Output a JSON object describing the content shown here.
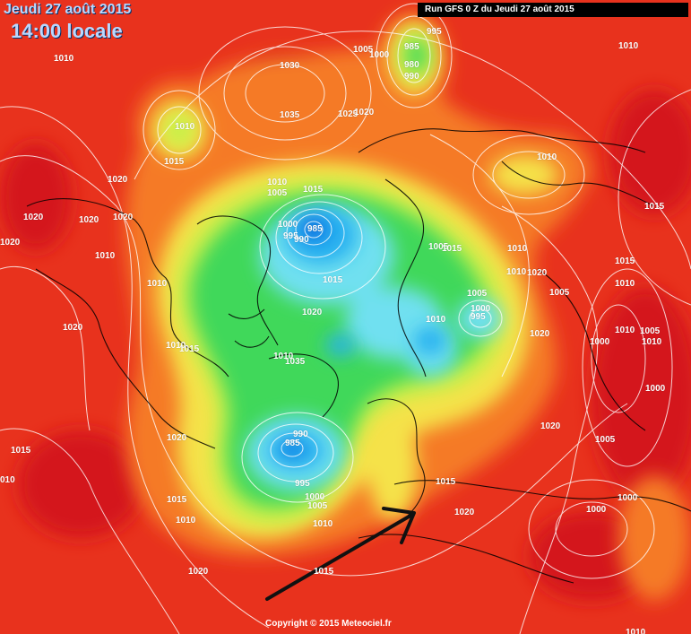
{
  "header": {
    "date": "Jeudi 27 août 2015",
    "time": "14:00 locale",
    "run": "Run GFS 0 Z du Jeudi 27 août 2015"
  },
  "footer": {
    "copyright": "Copyright © 2015 Meteociel.fr"
  },
  "colors": {
    "high": "#e8321d",
    "deep_high": "#d4121a",
    "orange": "#f57a28",
    "yellow": "#f5e24a",
    "lime": "#c8f048",
    "green": "#3fd85a",
    "cyan": "#6fe0f0",
    "blue": "#28b0f0",
    "low": "#0a66e0"
  },
  "isobars": [
    {
      "v": "1010"
    },
    {
      "v": "1030"
    },
    {
      "v": "1035"
    },
    {
      "v": "995"
    },
    {
      "v": "985"
    },
    {
      "v": "980"
    },
    {
      "v": "990"
    },
    {
      "v": "1005"
    },
    {
      "v": "1000"
    },
    {
      "v": "1025"
    },
    {
      "v": "1020"
    },
    {
      "v": "1010"
    },
    {
      "v": "1015"
    },
    {
      "v": "1010"
    },
    {
      "v": "1005"
    },
    {
      "v": "1015"
    },
    {
      "v": "1020"
    },
    {
      "v": "1020"
    },
    {
      "v": "1020"
    },
    {
      "v": "1020"
    },
    {
      "v": "1020"
    },
    {
      "v": "1010"
    },
    {
      "v": "1005"
    },
    {
      "v": "1000"
    },
    {
      "v": "995"
    },
    {
      "v": "985"
    },
    {
      "v": "990"
    },
    {
      "v": "1015"
    },
    {
      "v": "1010"
    },
    {
      "v": "1020"
    },
    {
      "v": "1010"
    },
    {
      "v": "1015"
    },
    {
      "v": "1015"
    },
    {
      "v": "1010"
    },
    {
      "v": "1010"
    },
    {
      "v": "1005"
    },
    {
      "v": "1000"
    },
    {
      "v": "995"
    },
    {
      "v": "1020"
    },
    {
      "v": "1015"
    },
    {
      "v": "1010"
    },
    {
      "v": "1005"
    },
    {
      "v": "1020"
    },
    {
      "v": "1015"
    },
    {
      "v": "1010"
    },
    {
      "v": "1035"
    },
    {
      "v": "1010"
    },
    {
      "v": "1020"
    },
    {
      "v": "1020"
    },
    {
      "v": "1015"
    },
    {
      "v": "990"
    },
    {
      "v": "985"
    },
    {
      "v": "995"
    },
    {
      "v": "1000"
    },
    {
      "v": "1005"
    },
    {
      "v": "1010"
    },
    {
      "v": "1020"
    },
    {
      "v": "1015"
    },
    {
      "v": "1010"
    },
    {
      "v": "1020"
    },
    {
      "v": "1010"
    },
    {
      "v": "1020"
    },
    {
      "v": "1015"
    },
    {
      "v": "1000"
    },
    {
      "v": "1005"
    },
    {
      "v": "1010"
    },
    {
      "v": "1000"
    },
    {
      "v": "1005"
    },
    {
      "v": "1000"
    },
    {
      "v": "1000"
    },
    {
      "v": "1010"
    },
    {
      "v": "010"
    },
    {
      "v": "1015"
    },
    {
      "v": "1010"
    },
    {
      "v": "1010"
    }
  ]
}
